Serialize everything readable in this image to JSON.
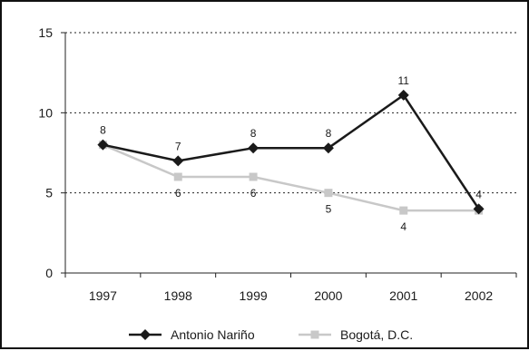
{
  "chart_data": {
    "type": "line",
    "categories": [
      "1997",
      "1998",
      "1999",
      "2000",
      "2001",
      "2002"
    ],
    "y_ticks": [
      "0",
      "5",
      "10",
      "15"
    ],
    "ylim": [
      0,
      15
    ],
    "grid": "horizontal dotted lines at 5, 10 and 15",
    "legend_position": "bottom",
    "series": [
      {
        "name": "Antonio Nariño",
        "values": [
          8,
          7,
          7.8,
          7.8,
          11.1,
          4
        ],
        "labels": [
          "8",
          "7",
          "8",
          "8",
          "11",
          "4"
        ],
        "label_position": "above",
        "marker": "diamond",
        "color": "#1a1a1a"
      },
      {
        "name": "Bogotá, D.C.",
        "values": [
          8,
          6,
          6,
          5,
          3.9,
          3.9
        ],
        "labels": [
          "",
          "6",
          "6",
          "5",
          "4",
          ""
        ],
        "label_position": "below",
        "marker": "square",
        "color": "#c8c8c8"
      }
    ]
  }
}
